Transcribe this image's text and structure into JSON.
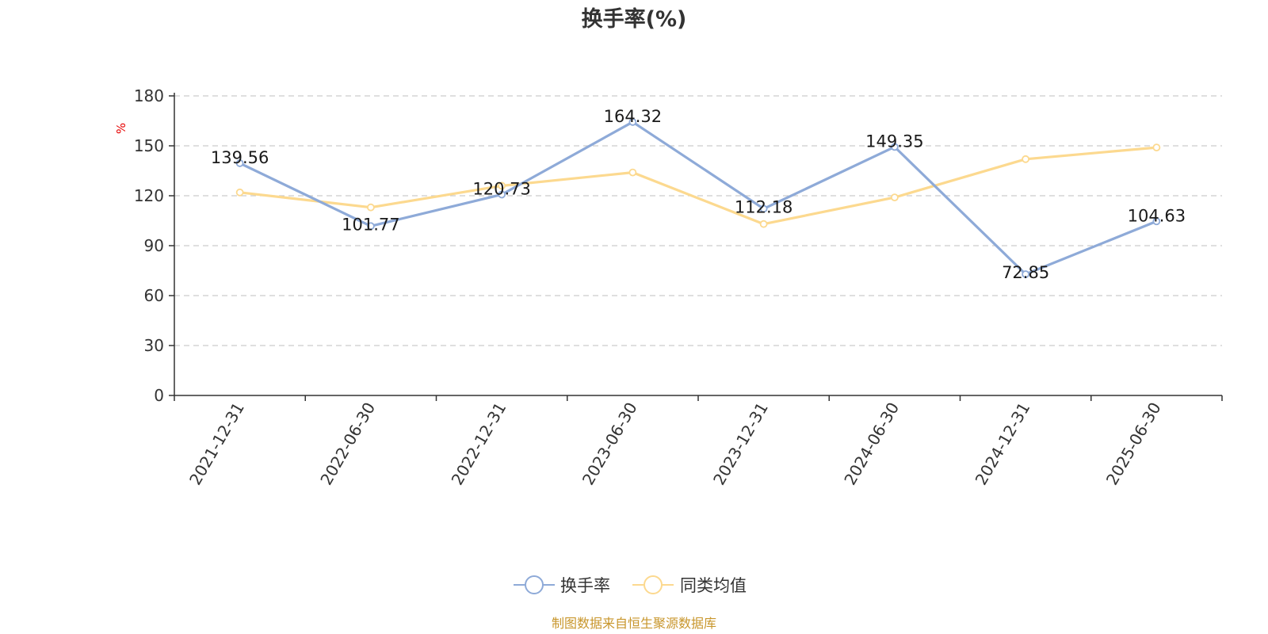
{
  "chart_data": {
    "type": "line",
    "title": "换手率(%)",
    "ylabel": "%",
    "xlabel": "",
    "categories": [
      "2021-12-31",
      "2022-06-30",
      "2022-12-31",
      "2023-06-30",
      "2023-12-31",
      "2024-06-30",
      "2024-12-31",
      "2025-06-30"
    ],
    "ylim": [
      0,
      180
    ],
    "yticks": [
      0,
      30,
      60,
      90,
      120,
      150,
      180
    ],
    "grid": true,
    "legend_position": "bottom",
    "series": [
      {
        "name": "换手率",
        "color": "#8eaad8",
        "values": [
          139.56,
          101.77,
          120.73,
          164.32,
          112.18,
          149.35,
          72.85,
          104.63
        ],
        "labels": [
          "139.56",
          "101.77",
          "120.73",
          "164.32",
          "112.18",
          "149.35",
          "72.85",
          "104.63"
        ]
      },
      {
        "name": "同类均值",
        "color": "#fcd98f",
        "values": [
          122,
          113,
          126,
          134,
          103,
          119,
          142,
          149
        ]
      }
    ]
  },
  "source_note": "制图数据来自恒生聚源数据库"
}
